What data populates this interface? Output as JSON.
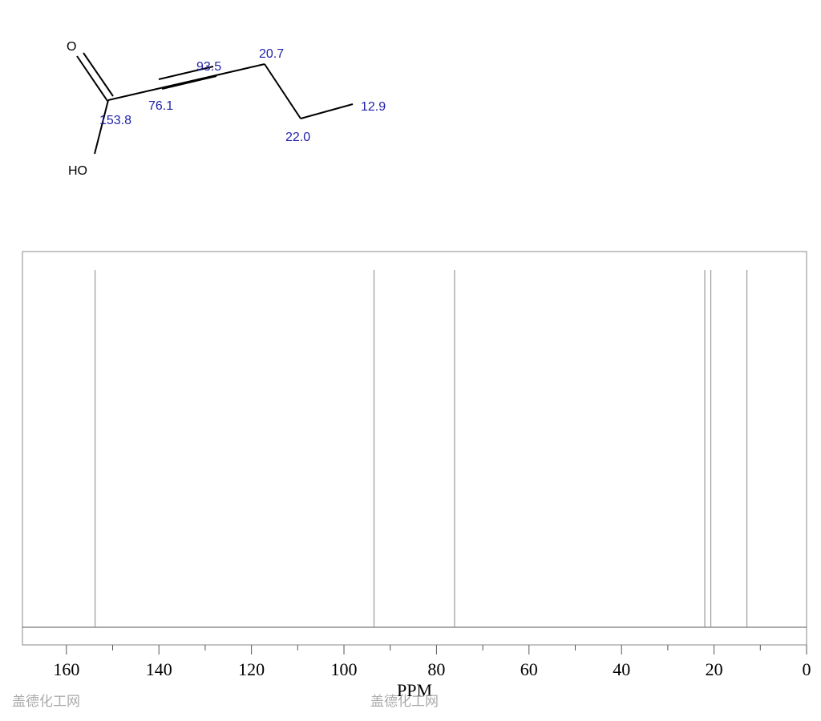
{
  "structure": {
    "atoms": [
      "O",
      "HO"
    ],
    "shift_labels": [
      "93.5",
      "20.7",
      "76.1",
      "153.8",
      "12.9",
      "22.0"
    ]
  },
  "chart_data": {
    "type": "spectrum",
    "x_label": "PPM",
    "peaks": [
      153.8,
      93.5,
      76.1,
      22.0,
      20.7,
      12.9
    ],
    "color": "#999999",
    "xlim": [
      169.5,
      0
    ],
    "xticks": [
      160,
      140,
      120,
      100,
      80,
      60,
      40,
      20,
      0
    ],
    "xminorticks": [
      150,
      130,
      110,
      90,
      70,
      50,
      30,
      10
    ]
  },
  "watermarks": [
    "盖德化工网",
    "盖德化工网"
  ]
}
